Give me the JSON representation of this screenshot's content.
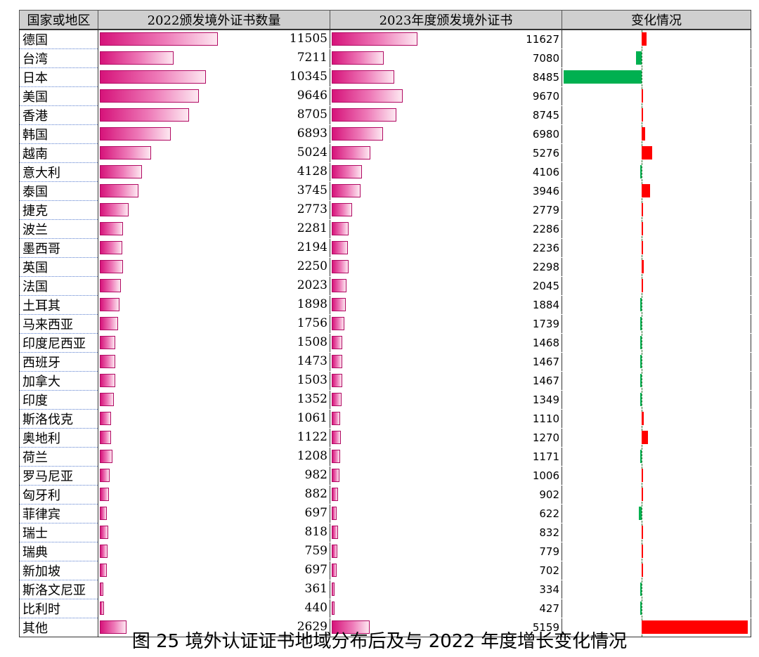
{
  "headers": {
    "region": "国家或地区",
    "y2022": "2022颁发境外证书数量",
    "y2023": "2023年度颁发境外证书",
    "change": "变化情况"
  },
  "caption": "图 25 境外认证证书地域分布后及与 2022 年度增长变化情况",
  "colors": {
    "bar_start": "#d6137a",
    "bar_end": "#fde8f1",
    "increase": "#ff0000",
    "decrease": "#00b050",
    "header_bg": "#cfcfcf"
  },
  "chart_data": {
    "type": "table",
    "columns": [
      "国家或地区",
      "2022颁发境外证书数量",
      "2023年度颁发境外证书",
      "变化情况"
    ],
    "rows": [
      {
        "region": "德国",
        "y2022": 11505,
        "y2023": 11627
      },
      {
        "region": "台湾",
        "y2022": 7211,
        "y2023": 7080
      },
      {
        "region": "日本",
        "y2022": 10345,
        "y2023": 8485
      },
      {
        "region": "美国",
        "y2022": 9646,
        "y2023": 9670
      },
      {
        "region": "香港",
        "y2022": 8705,
        "y2023": 8745
      },
      {
        "region": "韩国",
        "y2022": 6893,
        "y2023": 6980
      },
      {
        "region": "越南",
        "y2022": 5024,
        "y2023": 5276
      },
      {
        "region": "意大利",
        "y2022": 4128,
        "y2023": 4106
      },
      {
        "region": "泰国",
        "y2022": 3745,
        "y2023": 3946
      },
      {
        "region": "捷克",
        "y2022": 2773,
        "y2023": 2779
      },
      {
        "region": "波兰",
        "y2022": 2281,
        "y2023": 2286
      },
      {
        "region": "墨西哥",
        "y2022": 2194,
        "y2023": 2236
      },
      {
        "region": "英国",
        "y2022": 2250,
        "y2023": 2298
      },
      {
        "region": "法国",
        "y2022": 2023,
        "y2023": 2045
      },
      {
        "region": "土耳其",
        "y2022": 1898,
        "y2023": 1884
      },
      {
        "region": "马来西亚",
        "y2022": 1756,
        "y2023": 1739
      },
      {
        "region": "印度尼西亚",
        "y2022": 1508,
        "y2023": 1468
      },
      {
        "region": "西班牙",
        "y2022": 1473,
        "y2023": 1467
      },
      {
        "region": "加拿大",
        "y2022": 1503,
        "y2023": 1467
      },
      {
        "region": "印度",
        "y2022": 1352,
        "y2023": 1349
      },
      {
        "region": "斯洛伐克",
        "y2022": 1061,
        "y2023": 1110
      },
      {
        "region": "奥地利",
        "y2022": 1122,
        "y2023": 1270
      },
      {
        "region": "荷兰",
        "y2022": 1208,
        "y2023": 1171
      },
      {
        "region": "罗马尼亚",
        "y2022": 982,
        "y2023": 1006
      },
      {
        "region": "匈牙利",
        "y2022": 882,
        "y2023": 902
      },
      {
        "region": "菲律宾",
        "y2022": 697,
        "y2023": 622
      },
      {
        "region": "瑞士",
        "y2022": 818,
        "y2023": 832
      },
      {
        "region": "瑞典",
        "y2022": 759,
        "y2023": 779
      },
      {
        "region": "新加坡",
        "y2022": 697,
        "y2023": 702
      },
      {
        "region": "斯洛文尼亚",
        "y2022": 361,
        "y2023": 334
      },
      {
        "region": "比利时",
        "y2022": 440,
        "y2023": 427
      },
      {
        "region": "其他",
        "y2022": 2629,
        "y2023": 5159
      }
    ]
  }
}
